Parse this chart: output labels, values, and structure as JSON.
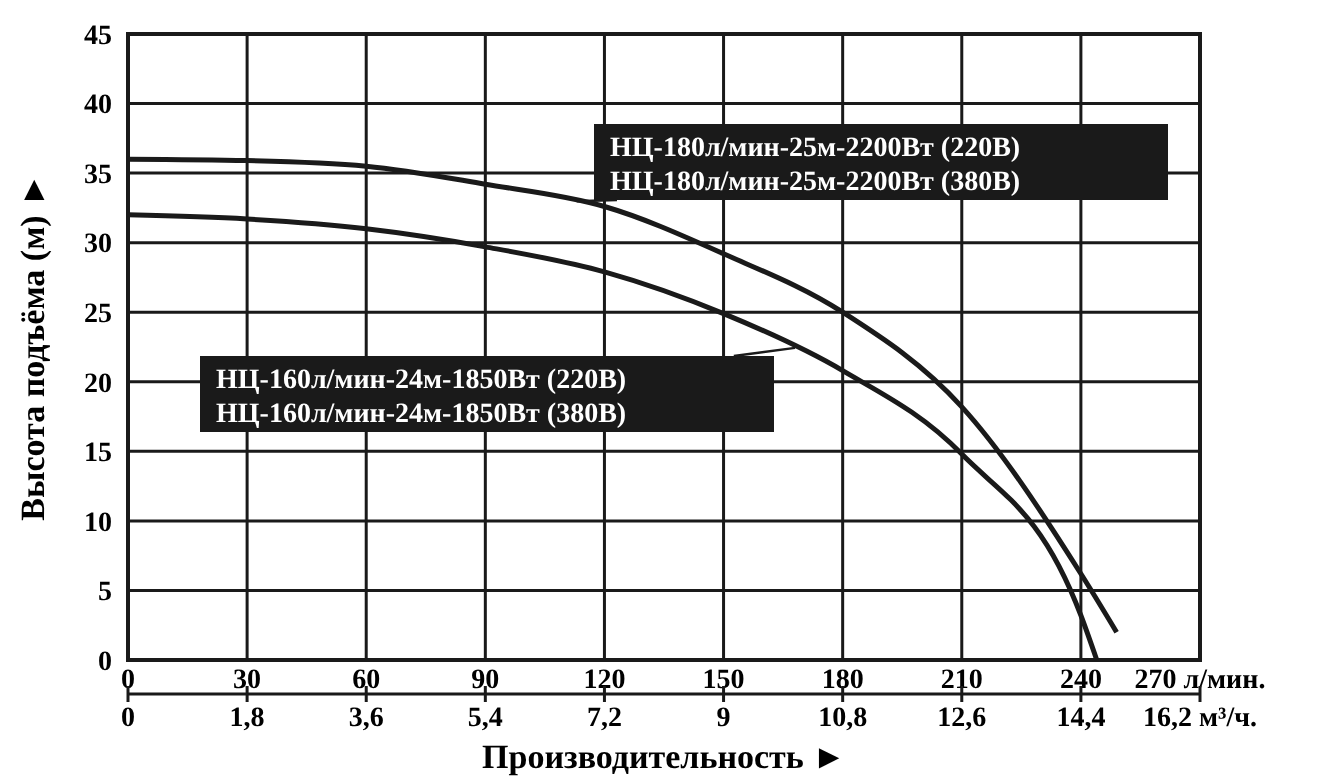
{
  "chart_data": {
    "type": "line",
    "xlabel": "Производительность ►",
    "ylabel": "Высота подъёма (м) ►",
    "xlim": [
      0,
      270
    ],
    "xticks": [
      0,
      30,
      60,
      90,
      120,
      150,
      180,
      210,
      240,
      {
        "value": 270,
        "label": "270 л/мин."
      }
    ],
    "x2lim": [
      0,
      16.2
    ],
    "x2ticks": [
      0,
      {
        "value": 1.8,
        "label": "1,8"
      },
      {
        "value": 3.6,
        "label": "3,6"
      },
      {
        "value": 5.4,
        "label": "5,4"
      },
      {
        "value": 7.2,
        "label": "7,2"
      },
      9,
      {
        "value": 10.8,
        "label": "10,8"
      },
      {
        "value": 12.6,
        "label": "12,6"
      },
      {
        "value": 14.4,
        "label": "14,4"
      },
      {
        "value": 16.2,
        "label": "16,2 м³/ч."
      }
    ],
    "ylim": [
      0,
      45
    ],
    "yticks": [
      0,
      5,
      10,
      15,
      20,
      25,
      30,
      35,
      40,
      45
    ],
    "grid": true,
    "marker": "none",
    "line_style": "solid",
    "series": [
      {
        "name": "НЦ-180л/мин-25м-2200Вт (220В)\nНЦ-180л/мин-25м-2200Вт (380В)",
        "color": "#1a1a1a",
        "x": [
          0,
          30,
          60,
          90,
          120,
          150,
          180,
          210,
          240,
          249
        ],
        "values": [
          36,
          35.9,
          35.5,
          34.2,
          32.6,
          29.2,
          25,
          18.2,
          6.2,
          2
        ]
      },
      {
        "name": "НЦ-160л/мин-24м-1850Вт (220В)\nНЦ-160л/мин-24м-1850Вт (380В)",
        "color": "#1a1a1a",
        "x": [
          0,
          30,
          60,
          90,
          120,
          150,
          180,
          210,
          240,
          244
        ],
        "values": [
          32,
          31.7,
          31,
          29.7,
          27.9,
          24.9,
          20.8,
          14.8,
          3.2,
          0
        ]
      }
    ]
  }
}
